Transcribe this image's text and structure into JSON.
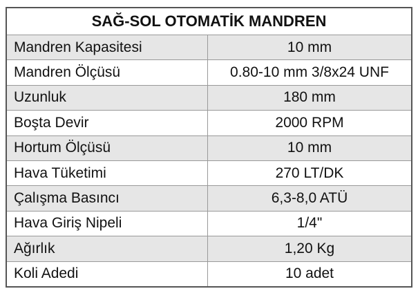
{
  "table": {
    "title": "SAĞ-SOL OTOMATİK MANDREN",
    "rows": [
      [
        "Mandren Kapasitesi",
        "10 mm"
      ],
      [
        "Mandren Ölçüsü",
        "0.80-10 mm 3/8x24 UNF"
      ],
      [
        "Uzunluk",
        "180 mm"
      ],
      [
        "Boşta Devir",
        "2000 RPM"
      ],
      [
        "Hortum Ölçüsü",
        "10 mm"
      ],
      [
        "Hava Tüketimi",
        "270 LT/DK"
      ],
      [
        "Çalışma Basıncı",
        "6,3-8,0 ATÜ"
      ],
      [
        "Hava Giriş Nipeli",
        "1/4\""
      ],
      [
        "Ağırlık",
        "1,20 Kg"
      ],
      [
        "Koli Adedi",
        "10 adet"
      ]
    ]
  }
}
